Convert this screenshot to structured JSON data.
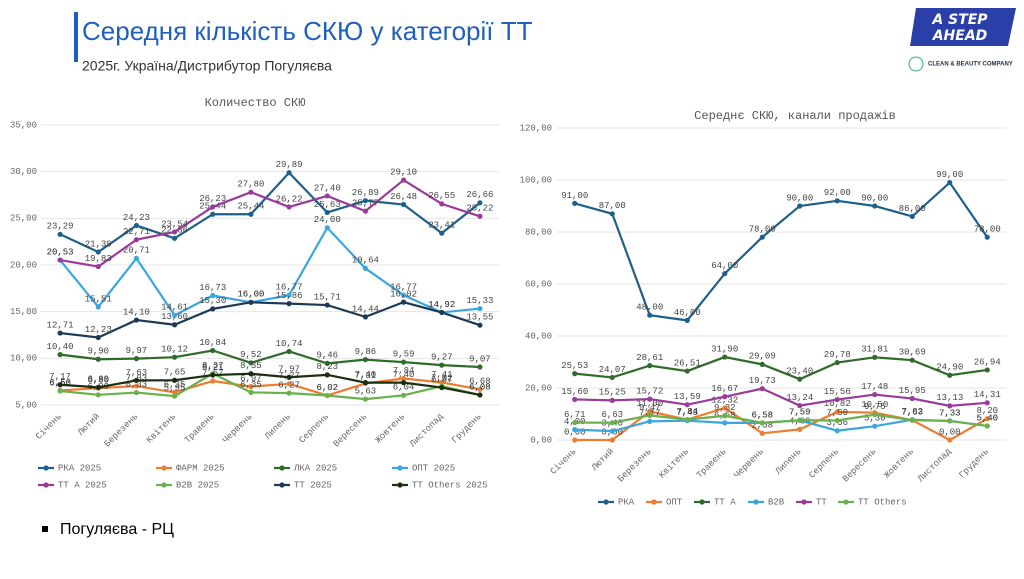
{
  "header": {
    "title": "Середня кількість СКЮ у  категорії ТТ",
    "subtitle": "2025г. Україна/Дистрибутор Погуляєва"
  },
  "logo": {
    "line1": "A STEP",
    "line2": "AHEAD",
    "company": "CLEAN & BEAUTY COMPANY"
  },
  "bullet": "Погуляєва - РЦ",
  "chart_data": [
    {
      "type": "line",
      "title": "Количество СКЮ",
      "grid": true,
      "legend": "bottom",
      "categories": [
        "Січень",
        "Лютий",
        "Березень",
        "Квітень",
        "Травень",
        "Червень",
        "Липень",
        "Серпень",
        "Вересень",
        "Жовтень",
        "Листопад",
        "Грудень"
      ],
      "ylim": [
        5,
        35
      ],
      "yticks": [
        {
          "value": 5,
          "label": "5,00"
        },
        {
          "value": 10,
          "label": "10,00"
        },
        {
          "value": 15,
          "label": "15,00"
        },
        {
          "value": 20,
          "label": "20,00"
        },
        {
          "value": 25,
          "label": "25,00"
        },
        {
          "value": 30,
          "label": "30,00"
        },
        {
          "value": 35,
          "label": "35,00"
        }
      ],
      "series": [
        {
          "name": "РКА 2025",
          "color": "#1f5f8b",
          "values": [
            23.29,
            21.39,
            24.23,
            22.86,
            25.44,
            25.44,
            29.89,
            25.63,
            26.89,
            26.48,
            23.41,
            26.66
          ],
          "value_labels": [
            "23,29",
            "21,39",
            "24,23",
            "22,86",
            "25,44",
            "25,44",
            "29,89",
            "25,63",
            "26,89",
            "26,48",
            "23,41",
            "26,66"
          ]
        },
        {
          "name": "ФАРМ 2025",
          "color": "#ed7d31",
          "values": [
            6.56,
            6.8,
            7.03,
            6.35,
            7.57,
            6.97,
            7.27,
            6.02,
            7.31,
            7.84,
            7.41,
            6.68
          ],
          "value_labels": [
            "6,56",
            "6,80",
            "7,03",
            "6,35",
            "7,57",
            "6,97",
            "7,27",
            "6,02",
            "7,31",
            "7,84",
            "7,41",
            "6,68"
          ]
        },
        {
          "name": "ЛКА 2025",
          "color": "#2f6b2a",
          "values": [
            10.4,
            9.9,
            9.97,
            10.12,
            10.84,
            9.52,
            10.74,
            9.46,
            9.86,
            9.59,
            9.27,
            9.07
          ],
          "value_labels": [
            "10,40",
            "9,90",
            "9,97",
            "10,12",
            "10,84",
            "9,52",
            "10,74",
            "9,46",
            "9,86",
            "9,59",
            "9,27",
            "9,07"
          ]
        },
        {
          "name": "ОПТ 2025",
          "color": "#3aa6dd",
          "values": [
            20.53,
            15.51,
            20.71,
            14.61,
            16.73,
            16.0,
            16.77,
            24.0,
            19.64,
            16.77,
            14.92,
            15.33
          ],
          "value_labels": [
            "20,53",
            "15,51",
            "20,71",
            "14,61",
            "16,73",
            "16,00",
            "16,77",
            "24,00",
            "19,64",
            "16,77",
            "14,92",
            "15,33"
          ]
        },
        {
          "name": "ТТ А 2025",
          "color": "#9a3a9a",
          "values": [
            20.53,
            19.83,
            22.71,
            23.54,
            26.23,
            27.8,
            26.22,
            27.4,
            25.77,
            29.1,
            26.55,
            25.22
          ],
          "value_labels": [
            "20,53",
            "19,83",
            "22,71",
            "23,54",
            "26,23",
            "27,80",
            "26,22",
            "27,40",
            "25,77",
            "29,10",
            "26,55",
            "25,22"
          ]
        },
        {
          "name": "B2B 2025",
          "color": "#6ab04c",
          "values": [
            6.5,
            6.09,
            6.33,
            5.95,
            8.37,
            6.35,
            6.27,
            6.02,
            5.63,
            6.04,
            7.02,
            6.08
          ],
          "value_labels": [
            "6,50",
            "6,09",
            "6,33",
            "5,95",
            "8,37",
            "6,35",
            "6,27",
            "6,02",
            "5,63",
            "6,04",
            "7,02",
            "6,08"
          ]
        },
        {
          "name": "ТТ 2025",
          "color": "#1b3a57",
          "values": [
            12.71,
            12.23,
            14.1,
            13.6,
            15.3,
            16.0,
            15.86,
            15.71,
            14.44,
            16.02,
            14.92,
            13.55
          ],
          "value_labels": [
            "12,71",
            "12,23",
            "14,10",
            "13,60",
            "15,30",
            "16,00",
            "15,86",
            "15,71",
            "14,44",
            "16,02",
            "14,92",
            "13,55"
          ]
        },
        {
          "name": "TT Others 2025",
          "color": "#1c2e12",
          "values": [
            7.17,
            6.89,
            7.63,
            7.65,
            8.21,
            8.35,
            7.97,
            8.23,
            7.4,
            7.4,
            6.87,
            6.08
          ],
          "value_labels": [
            "7,17",
            "6,89",
            "7,63",
            "7,65",
            "8,21",
            "8,35",
            "7,97",
            "8,23",
            "7,40",
            "7,40",
            "6,87",
            "6,08"
          ]
        }
      ]
    },
    {
      "type": "line",
      "title": "Середнє СКЮ, канали продажів",
      "grid": true,
      "legend": "bottom",
      "categories": [
        "Січень",
        "Лютий",
        "Березень",
        "Квітень",
        "Травень",
        "Червень",
        "Липень",
        "Серпень",
        "Вересень",
        "Жовтень",
        "Листопад",
        "Грудень"
      ],
      "ylim": [
        0,
        120
      ],
      "yticks": [
        {
          "value": 0,
          "label": "0,00"
        },
        {
          "value": 20,
          "label": "20,00"
        },
        {
          "value": 40,
          "label": "40,00"
        },
        {
          "value": 60,
          "label": "60,00"
        },
        {
          "value": 80,
          "label": "80,00"
        },
        {
          "value": 100,
          "label": "100,00"
        },
        {
          "value": 120,
          "label": "120,00"
        }
      ],
      "series": [
        {
          "name": "РКА",
          "color": "#1f5f8b",
          "values": [
            91,
            87,
            48,
            46,
            64,
            78,
            90,
            92,
            90,
            86,
            99,
            78
          ],
          "value_labels": [
            "91,00",
            "87,00",
            "48,00",
            "46,00",
            "64,00",
            "78,00",
            "90,00",
            "92,00",
            "90,00",
            "86,00",
            "99,00",
            "78,00"
          ]
        },
        {
          "name": "ОПТ",
          "color": "#ed7d31",
          "values": [
            0,
            0,
            11,
            7.84,
            12.32,
            2.58,
            4.09,
            10.82,
            10.5,
            7.63,
            0,
            8.2
          ],
          "value_labels": [
            "0,00",
            "0,00",
            "11,00",
            "7,84",
            "12,32",
            "2,58",
            "4,09",
            "10,82",
            "10,50",
            "7,63",
            "0,00",
            "8,20"
          ]
        },
        {
          "name": "ТТ А",
          "color": "#2f6b2a",
          "values": [
            25.53,
            24.07,
            28.61,
            26.51,
            31.9,
            29.09,
            23.4,
            29.78,
            31.81,
            30.69,
            24.9,
            26.94
          ],
          "value_labels": [
            "25,53",
            "24,07",
            "28,61",
            "26,51",
            "31,90",
            "29,09",
            "23,40",
            "29,78",
            "31,81",
            "30,69",
            "24,90",
            "26,94"
          ]
        },
        {
          "name": "B2B",
          "color": "#3aa6dd",
          "values": [
            4,
            3.4,
            7.17,
            7.43,
            6.58,
            6.58,
            7.59,
            3.56,
            5.3,
            7.82,
            7.33,
            5.4
          ],
          "value_labels": [
            "4,00",
            "3,40",
            "7,17",
            "7,43",
            "6,58",
            "6,58",
            "7,59",
            "3,56",
            "5,30",
            "7,82",
            "7,33",
            "5,40"
          ]
        },
        {
          "name": "ТТ",
          "color": "#9a3a9a",
          "values": [
            15.6,
            15.25,
            15.72,
            13.59,
            16.67,
            19.73,
            13.24,
            15.56,
            17.48,
            15.95,
            13.13,
            14.31
          ],
          "value_labels": [
            "15,60",
            "15,25",
            "15,72",
            "13,59",
            "16,67",
            "19,73",
            "13,24",
            "15,56",
            "17,48",
            "15,95",
            "13,13",
            "14,31"
          ]
        },
        {
          "name": "TT Others",
          "color": "#6ab04c",
          "values": [
            6.71,
            6.63,
            9.47,
            7.84,
            9.32,
            6.58,
            7.59,
            7.5,
            9.75,
            7.63,
            7.33,
            5.4
          ],
          "value_labels": [
            "6,71",
            "6,63",
            "9,47",
            "7,84",
            "9,32",
            "6,58",
            "7,59",
            "7,50",
            "9,75",
            "7,63",
            "7,33",
            "5,40"
          ]
        }
      ]
    }
  ]
}
